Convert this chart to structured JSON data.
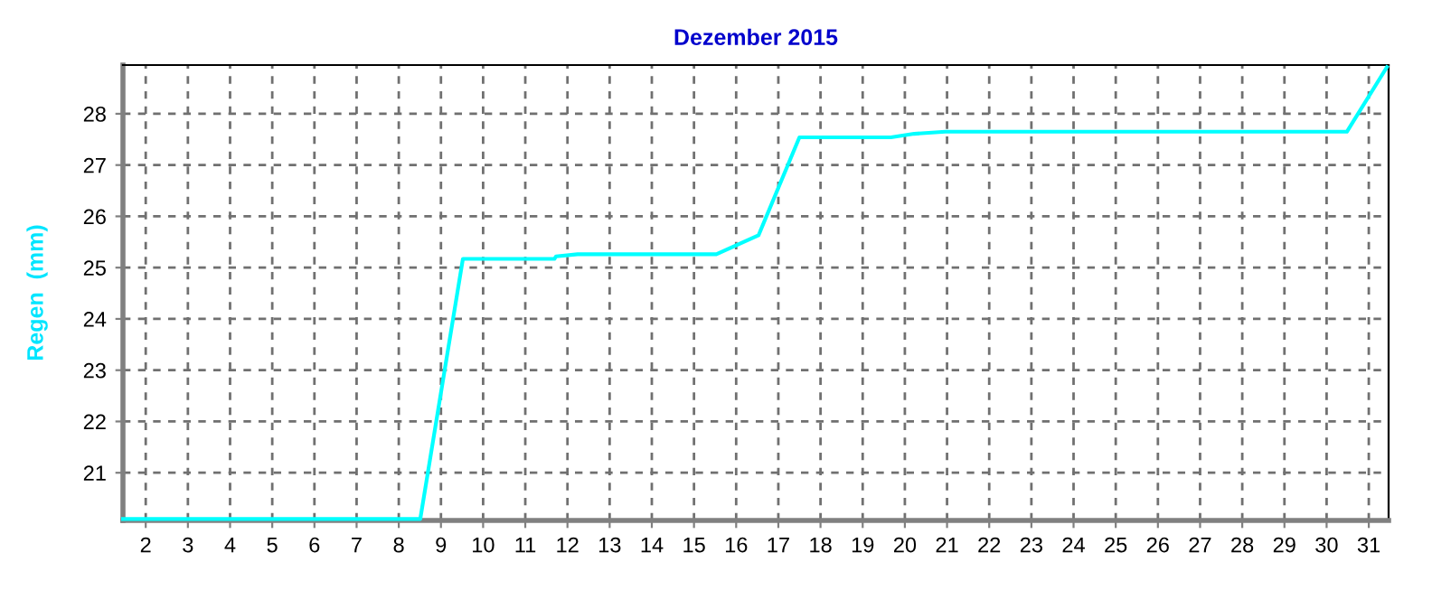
{
  "chart_data": {
    "type": "line",
    "title": "Dezember 2015",
    "ylabel": "Regen  (mm)",
    "xlim": [
      1.46,
      31.47
    ],
    "ylim": [
      20.07,
      28.95
    ],
    "xticks": [
      2,
      3,
      4,
      5,
      6,
      7,
      8,
      9,
      10,
      11,
      12,
      13,
      14,
      15,
      16,
      17,
      18,
      19,
      20,
      21,
      22,
      23,
      24,
      25,
      26,
      27,
      28,
      29,
      30,
      31
    ],
    "yticks": [
      21,
      22,
      23,
      24,
      25,
      26,
      27,
      28
    ],
    "grid": true,
    "line_style": "solid",
    "series": [
      {
        "color": "#00ffff",
        "x": [
          1.46,
          8.51,
          9.52,
          11.69,
          11.73,
          12.24,
          15.53,
          16.53,
          17.5,
          19.67,
          20.22,
          20.96,
          30.48,
          31.43
        ],
        "values": [
          20.1,
          20.1,
          25.17,
          25.17,
          25.22,
          25.26,
          25.26,
          25.63,
          27.54,
          27.54,
          27.61,
          27.65,
          27.65,
          28.91
        ]
      }
    ]
  }
}
